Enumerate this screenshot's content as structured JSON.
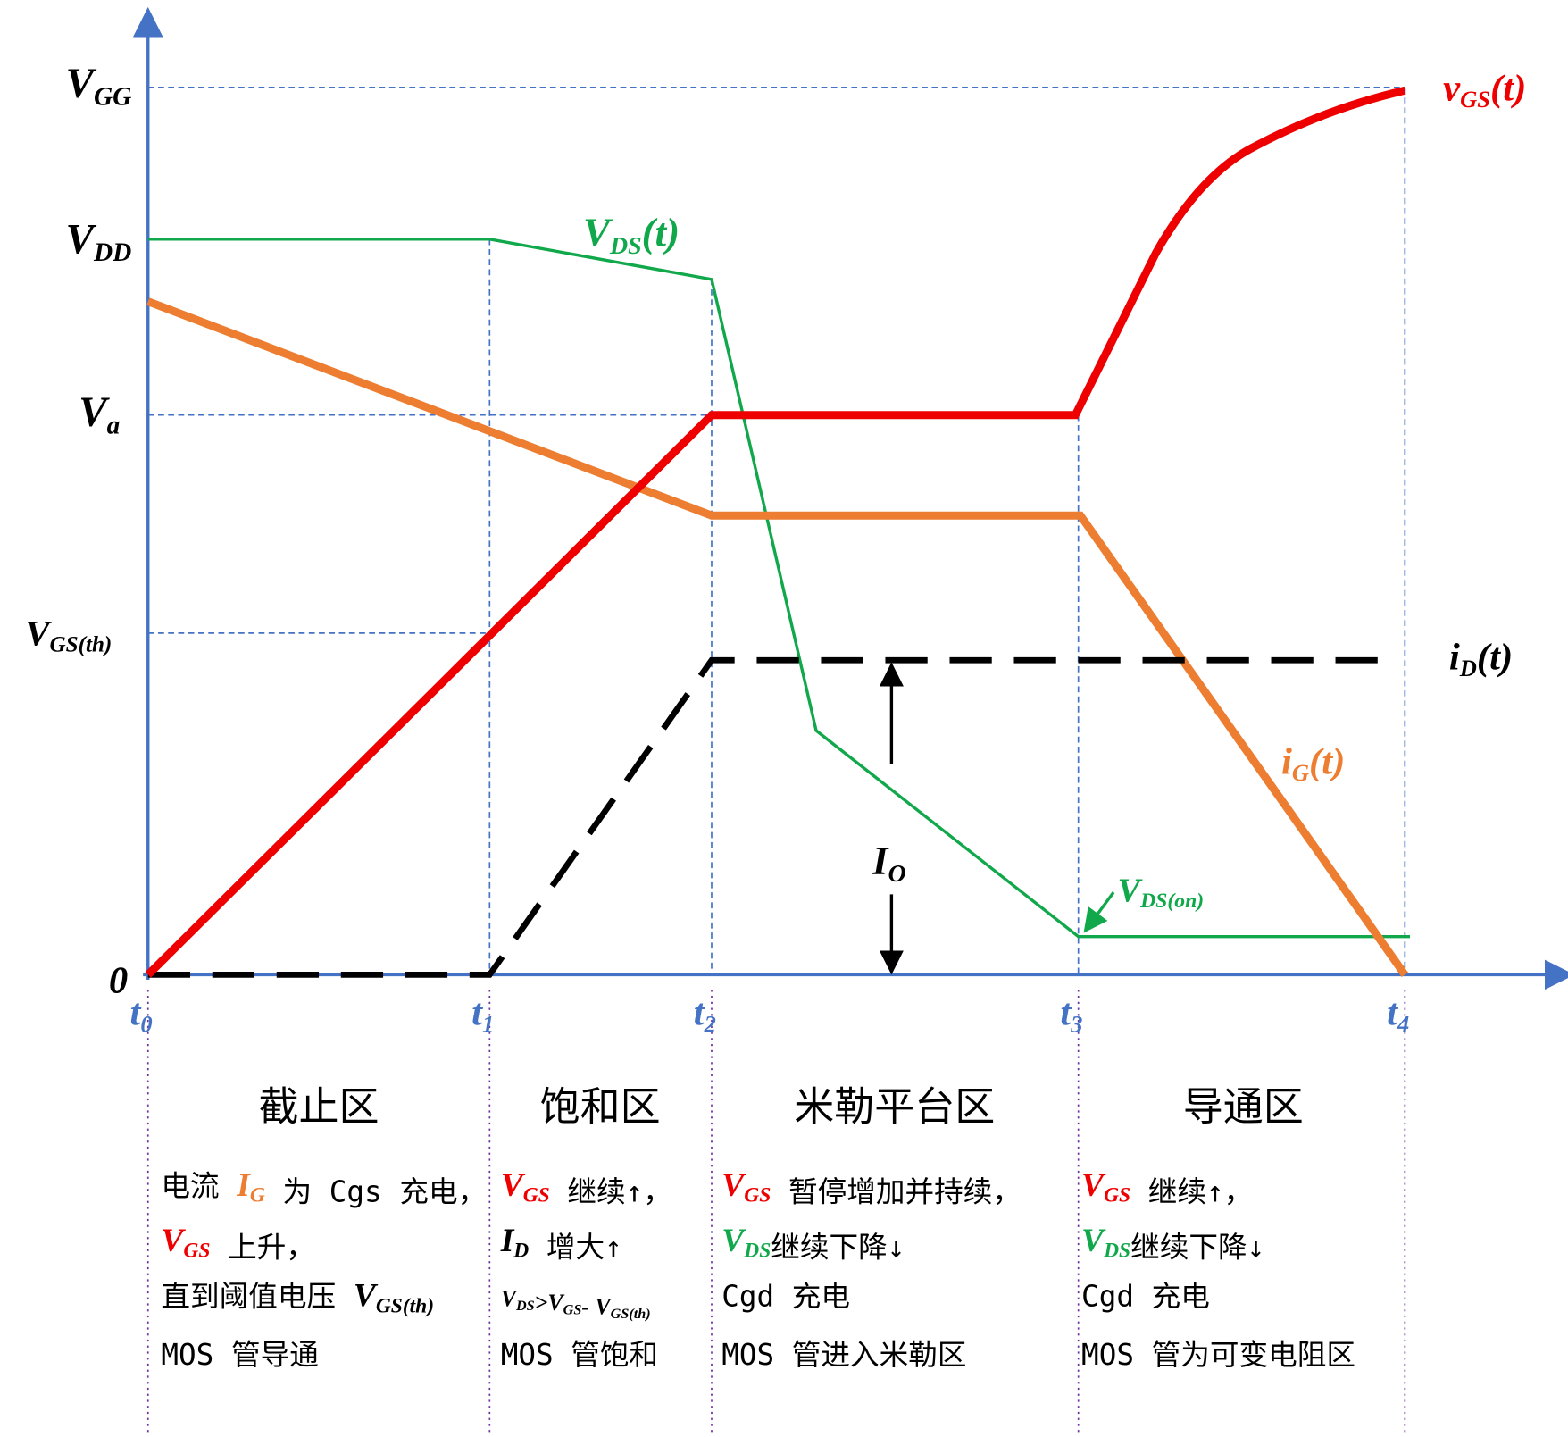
{
  "axis_labels": [
    {
      "main": "V",
      "sub": "GG"
    },
    {
      "main": "V",
      "sub": "DD"
    },
    {
      "main": "V",
      "sub": "a"
    },
    {
      "main": "V",
      "sub": "GS(th)"
    },
    {
      "main": "0"
    }
  ],
  "time_labels": [
    {
      "main": "t",
      "sub": "0"
    },
    {
      "main": "t",
      "sub": "1"
    },
    {
      "main": "t",
      "sub": "2"
    },
    {
      "main": "t",
      "sub": "3"
    },
    {
      "main": "t",
      "sub": "4"
    }
  ],
  "curve_labels": [
    {
      "main": "v",
      "sub": "GS",
      "tail": "(t)",
      "color": "#ee0000"
    },
    {
      "main": "V",
      "sub": "DS",
      "tail": "(t)",
      "color": "#10a84a"
    },
    {
      "main": "i",
      "sub": "D",
      "tail": "(t)",
      "color": "#000000"
    },
    {
      "main": "i",
      "sub": "G",
      "tail": "(t)",
      "color": "#ed7d31"
    },
    {
      "main": "V",
      "sub": "DS(on)",
      "color": "#10a84a"
    },
    {
      "main": "I",
      "sub": "O",
      "color": "#000000"
    }
  ],
  "regions": [
    {
      "title": "截止区",
      "lines": [
        [
          {
            "t": "电流 "
          },
          {
            "t": "I",
            "sub": "G",
            "color": "#ed7d31"
          },
          {
            "t": " 为 Cgs 充电，"
          }
        ],
        [
          {
            "t": "V",
            "sub": "GS",
            "color": "#ee0000"
          },
          {
            "t": " 上升，"
          }
        ],
        [
          {
            "t": "直到阈值电压 "
          },
          {
            "t": "V",
            "sub": "GS(th)",
            "color": "#000000"
          }
        ],
        [
          {
            "t": "MOS 管导通"
          }
        ]
      ]
    },
    {
      "title": "饱和区",
      "lines": [
        [
          {
            "t": "V",
            "sub": "GS",
            "color": "#ee0000"
          },
          {
            "t": " 继续↑，"
          }
        ],
        [
          {
            "t": "I",
            "sub": "D",
            "color": "#000000"
          },
          {
            "t": " 增大↑"
          }
        ],
        [
          {
            "t": "V",
            "sub": "DS",
            "color": "#000000"
          },
          {
            "t": ">",
            "color": "#000000"
          },
          {
            "t": "V",
            "sub": "GS",
            "color": "#000000"
          },
          {
            "t": "- ",
            "color": "#000000"
          },
          {
            "t": "V",
            "sub": "GS(th)",
            "color": "#000000"
          }
        ],
        [
          {
            "t": "MOS 管饱和"
          }
        ]
      ]
    },
    {
      "title": "米勒平台区",
      "lines": [
        [
          {
            "t": "V",
            "sub": "GS",
            "color": "#ee0000"
          },
          {
            "t": " 暂停增加并持续，"
          }
        ],
        [
          {
            "t": "V",
            "sub": "DS",
            "color": "#10a84a"
          },
          {
            "t": "继续下降↓"
          }
        ],
        [
          {
            "t": "Cgd 充电"
          }
        ],
        [
          {
            "t": "MOS 管进入米勒区"
          }
        ]
      ]
    },
    {
      "title": "导通区",
      "lines": [
        [
          {
            "t": "V",
            "sub": "GS",
            "color": "#ee0000"
          },
          {
            "t": " 继续↑，"
          }
        ],
        [
          {
            "t": "V",
            "sub": "DS",
            "color": "#10a84a"
          },
          {
            "t": "继续下降↓"
          }
        ],
        [
          {
            "t": "Cgd 充电"
          }
        ],
        [
          {
            "t": "MOS 管为可变电阻区"
          }
        ]
      ]
    }
  ]
}
